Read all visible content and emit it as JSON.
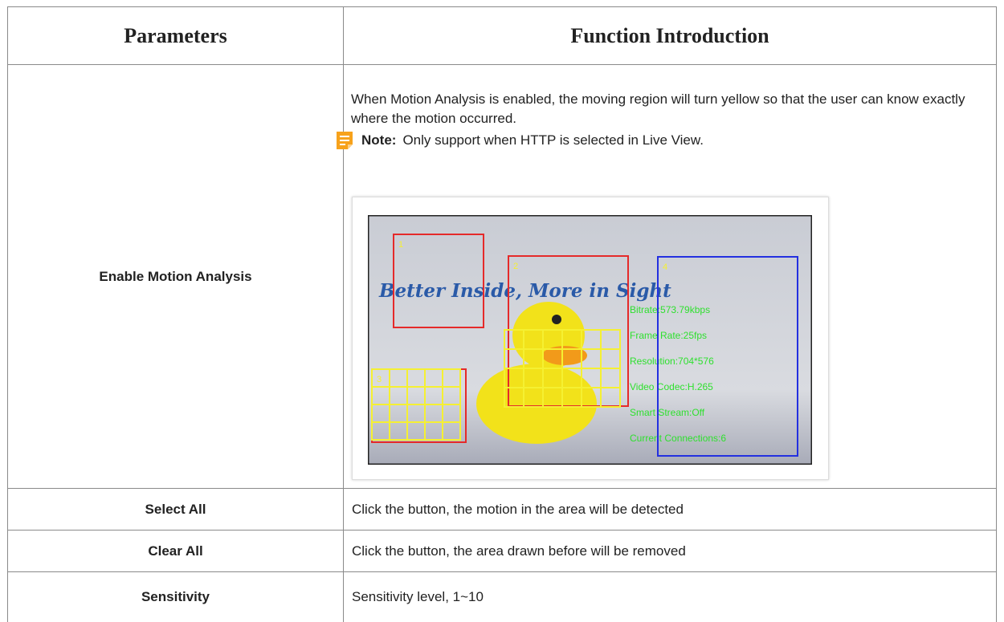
{
  "table": {
    "header": [
      "Parameters",
      "Function Introduction"
    ],
    "rows": [
      {
        "parameter": "Enable Motion Analysis",
        "description": "When Motion Analysis is enabled, the moving region will turn yellow so that the user can know exactly where the motion occurred.",
        "note": {
          "label": "Note:",
          "text": "Only support when HTTP is selected in Live View."
        },
        "image": {
          "slogan": "Better Inside, More in Sight",
          "regions": [
            "1",
            "2",
            "3",
            "4"
          ],
          "overlay": [
            "Bitrate:573.79kbps",
            "Frame Rate:25fps",
            "Resolution:704*576",
            "Video Codec:H.265",
            "Smart Stream:Off",
            "Current Connections:6"
          ]
        }
      },
      {
        "parameter": "Select All",
        "description": "Click the button, the motion in the area will be detected"
      },
      {
        "parameter": "Clear All",
        "description": "Click the button, the area drawn before will be removed"
      },
      {
        "parameter": "Sensitivity",
        "description": "Sensitivity level, 1~10"
      }
    ]
  }
}
